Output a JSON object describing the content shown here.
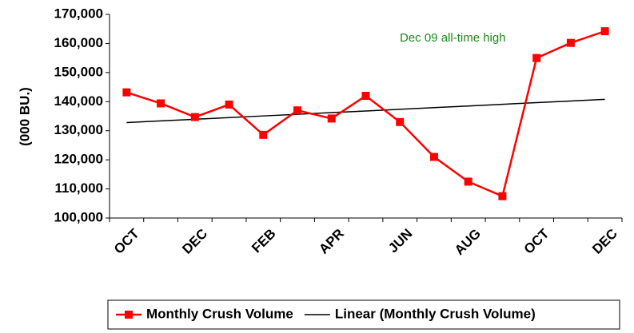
{
  "chart_data": {
    "type": "line",
    "y_label": "(000 BU.)",
    "annotation": "Dec 09 all-time high",
    "categories": [
      "OCT",
      null,
      "DEC",
      null,
      "FEB",
      null,
      "APR",
      null,
      "JUN",
      null,
      "AUG",
      null,
      "OCT",
      null,
      "DEC"
    ],
    "series": [
      {
        "name": "Monthly Crush Volume",
        "color": "#ff0000",
        "marker": "square",
        "values": [
          143200,
          139400,
          134700,
          139000,
          128600,
          137000,
          134200,
          142000,
          133000,
          121000,
          112500,
          107500,
          155000,
          160200,
          164200
        ]
      },
      {
        "name": "Linear (Monthly Crush Volume)",
        "color": "#000000",
        "values": [
          132800,
          133371,
          133943,
          134514,
          135086,
          135657,
          136229,
          136800,
          137371,
          137943,
          138514,
          139086,
          139657,
          140229,
          140800
        ]
      }
    ],
    "ylim": [
      100000,
      170000
    ],
    "yticks": [
      {
        "value": 100000,
        "label": "100,000"
      },
      {
        "value": 110000,
        "label": "110,000"
      },
      {
        "value": 120000,
        "label": "120,000"
      },
      {
        "value": 130000,
        "label": "130,000"
      },
      {
        "value": 140000,
        "label": "140,000"
      },
      {
        "value": 150000,
        "label": "150,000"
      },
      {
        "value": 160000,
        "label": "160,000"
      },
      {
        "value": 170000,
        "label": "170,000"
      }
    ],
    "legend": "bottom"
  }
}
